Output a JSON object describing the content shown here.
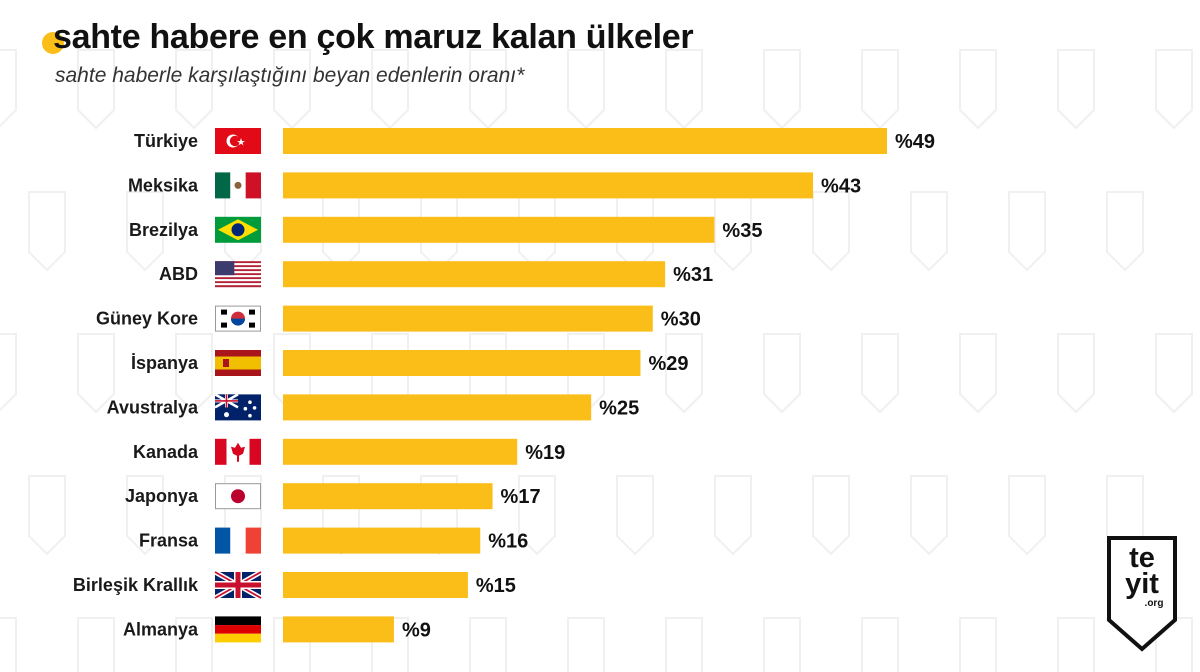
{
  "header": {
    "title": "sahte habere en çok maruz kalan ülkeler",
    "subtitle": "sahte haberle karşılaştığını beyan edenlerin oranı*"
  },
  "colors": {
    "bar": "#fbbd18",
    "accent": "#fbbd18",
    "text": "#111111",
    "pattern": "#f0f0f0"
  },
  "logo": {
    "line1": "te",
    "line2": "yit",
    "line3": ".org"
  },
  "chart_data": {
    "type": "bar",
    "orientation": "horizontal",
    "categories": [
      "Türkiye",
      "Meksika",
      "Brezilya",
      "ABD",
      "Güney Kore",
      "İspanya",
      "Avustralya",
      "Kanada",
      "Japonya",
      "Fransa",
      "Birleşik Krallık",
      "Almanya"
    ],
    "values": [
      49,
      43,
      35,
      31,
      30,
      29,
      25,
      19,
      17,
      16,
      15,
      9
    ],
    "value_labels": [
      "%49",
      "%43",
      "%35",
      "%31",
      "%30",
      "%29",
      "%25",
      "%19",
      "%17",
      "%16",
      "%15",
      "%9"
    ],
    "flags": [
      "turkey-flag",
      "mexico-flag",
      "brazil-flag",
      "usa-flag",
      "south-korea-flag",
      "spain-flag",
      "australia-flag",
      "canada-flag",
      "japan-flag",
      "france-flag",
      "uk-flag",
      "germany-flag"
    ],
    "xlim": [
      0,
      49
    ],
    "grid": false,
    "title": "sahte habere en çok maruz kalan ülkeler",
    "subtitle": "sahte haberle karşılaştığını beyan edenlerin oranı*"
  }
}
